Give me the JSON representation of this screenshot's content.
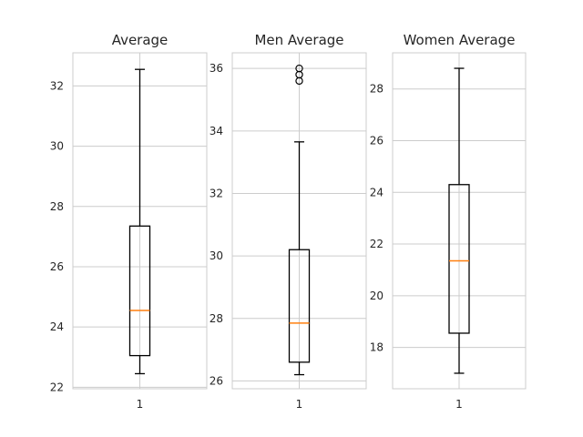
{
  "figure": {
    "background": "#ffffff"
  },
  "style": {
    "frame_color": "#cccccc",
    "grid_color": "#cccccc",
    "box_color": "#000000",
    "median_color": "#ff7f0e",
    "text_color": "#262626"
  },
  "chart_data": [
    {
      "type": "box",
      "title": "Average",
      "categories": [
        "1"
      ],
      "ylim": [
        21.95,
        33.1
      ],
      "yticks": [
        22,
        24,
        26,
        28,
        30,
        32
      ],
      "grid": true,
      "box": {
        "whisker_low": 22.45,
        "q1": 23.05,
        "median": 24.55,
        "q3": 27.35,
        "whisker_high": 32.55,
        "outliers": []
      }
    },
    {
      "type": "box",
      "title": "Men Average",
      "categories": [
        "1"
      ],
      "ylim": [
        25.75,
        36.5
      ],
      "yticks": [
        26,
        28,
        30,
        32,
        34,
        36
      ],
      "grid": true,
      "box": {
        "whisker_low": 26.2,
        "q1": 26.6,
        "median": 27.85,
        "q3": 30.2,
        "whisker_high": 33.65,
        "outliers": [
          35.6,
          35.8,
          36.0
        ]
      }
    },
    {
      "type": "box",
      "title": "Women Average",
      "categories": [
        "1"
      ],
      "ylim": [
        16.4,
        29.4
      ],
      "yticks": [
        18,
        20,
        22,
        24,
        26,
        28
      ],
      "grid": true,
      "box": {
        "whisker_low": 17.0,
        "q1": 18.55,
        "median": 21.35,
        "q3": 24.3,
        "whisker_high": 28.8,
        "outliers": []
      }
    }
  ]
}
